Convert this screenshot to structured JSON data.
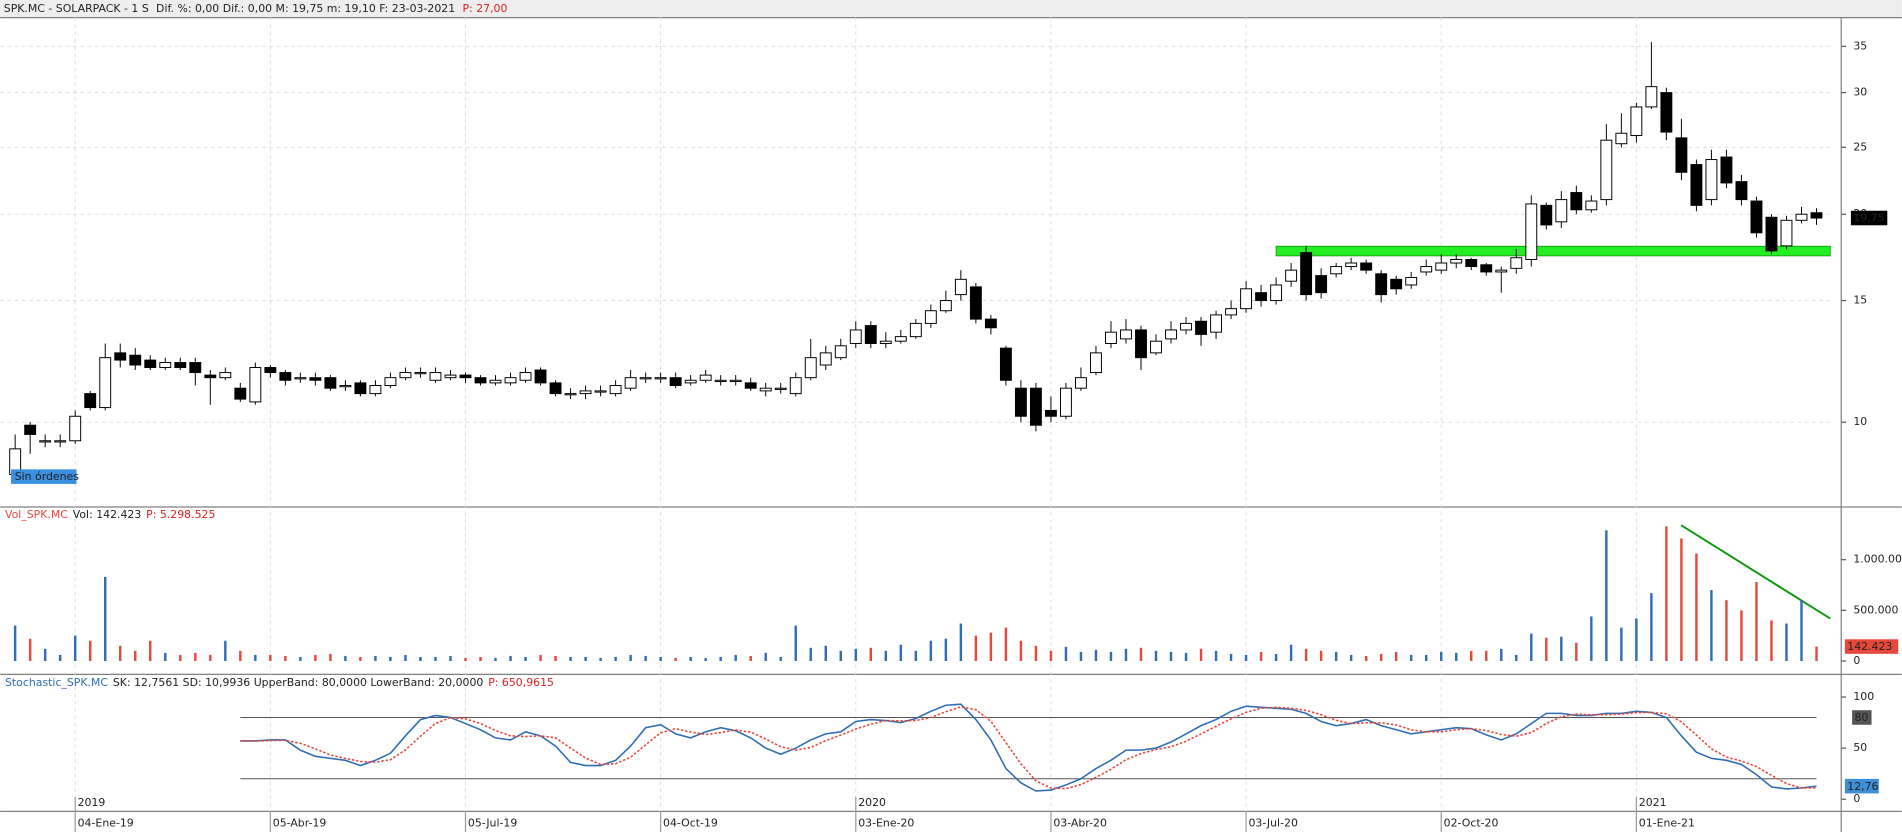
{
  "header": {
    "symbol": "SPK.MC - SOLARPACK -  1 S",
    "stats": "Dif. %: 0,00  Dif.: 0,00  M: 19,75  m: 19,10  F: 23-03-2021",
    "price": "P: 27,00"
  },
  "orders_label": "Sin órdenes",
  "chart_data": [
    {
      "type": "candlestick",
      "log_scale": true,
      "grid": true,
      "up_color": "#ffffff",
      "down_color": "#000000",
      "xlim": [
        -1,
        121
      ],
      "ylim": [
        7.6,
        38.6
      ],
      "yticks": [
        10,
        15,
        20,
        25,
        30,
        35
      ],
      "xticks": [
        {
          "value": 4,
          "label": "04-Ene-19"
        },
        {
          "value": 17,
          "label": "05-Abr-19"
        },
        {
          "value": 30,
          "label": "05-Jul-19"
        },
        {
          "value": 43,
          "label": "04-Oct-19"
        },
        {
          "value": 56,
          "label": "03-Ene-20"
        },
        {
          "value": 69,
          "label": "03-Abr-20"
        },
        {
          "value": 82,
          "label": "03-Jul-20"
        },
        {
          "value": 95,
          "label": "02-Oct-20"
        },
        {
          "value": 108,
          "label": "01-Ene-21"
        }
      ],
      "year_labels": [
        {
          "value": 4,
          "label": "2019"
        },
        {
          "value": 56,
          "label": "2020"
        },
        {
          "value": 108,
          "label": "2021"
        }
      ],
      "last_value_label": "19,75",
      "open": [
        8.4,
        9.9,
        9.4,
        9.4,
        9.4,
        11.0,
        10.5,
        12.6,
        12.5,
        12.3,
        12.0,
        12.2,
        12.2,
        11.7,
        11.6,
        11.2,
        10.7,
        12.0,
        11.8,
        11.6,
        11.6,
        11.6,
        11.3,
        11.4,
        11.0,
        11.3,
        11.6,
        11.8,
        11.5,
        11.6,
        11.7,
        11.6,
        11.4,
        11.4,
        11.5,
        11.9,
        11.4,
        11.0,
        11.0,
        11.1,
        11.0,
        11.2,
        11.6,
        11.6,
        11.6,
        11.4,
        11.5,
        11.5,
        11.5,
        11.4,
        11.1,
        11.2,
        11.0,
        11.6,
        12.1,
        12.4,
        13.0,
        13.8,
        13.0,
        13.1,
        13.3,
        13.9,
        14.5,
        15.3,
        15.7,
        14.1,
        12.8,
        11.2,
        11.2,
        10.4,
        10.2,
        11.2,
        11.8,
        13.0,
        13.2,
        13.6,
        12.6,
        13.2,
        13.6,
        14.0,
        13.5,
        14.3,
        14.6,
        15.4,
        15.0,
        16.0,
        17.6,
        16.3,
        16.4,
        16.8,
        17.0,
        16.4,
        16.1,
        15.8,
        16.5,
        16.6,
        17.0,
        17.2,
        16.9,
        16.5,
        16.7,
        17.2,
        20.6,
        19.5,
        21.5,
        20.3,
        21.0,
        25.3,
        26.0,
        28.6,
        30.0,
        25.8,
        23.6,
        21.0,
        24.2,
        22.3,
        20.9,
        19.8,
        18.0,
        19.6,
        20.1
      ],
      "high": [
        9.6,
        10.0,
        9.6,
        9.6,
        10.4,
        11.1,
        13.0,
        13.0,
        12.8,
        12.5,
        12.4,
        12.4,
        12.4,
        11.9,
        12.0,
        11.4,
        12.2,
        12.1,
        11.9,
        11.8,
        11.8,
        11.7,
        11.5,
        11.5,
        11.5,
        11.8,
        12.0,
        12.0,
        12.0,
        11.9,
        11.8,
        11.7,
        11.7,
        11.8,
        12.0,
        12.0,
        11.5,
        11.2,
        11.3,
        11.3,
        11.5,
        11.9,
        11.8,
        11.8,
        11.8,
        11.7,
        11.9,
        11.7,
        11.7,
        11.6,
        11.4,
        11.4,
        11.8,
        13.2,
        12.9,
        13.2,
        14.0,
        14.0,
        13.5,
        13.6,
        14.1,
        14.8,
        15.5,
        16.6,
        15.9,
        14.3,
        12.9,
        11.5,
        11.4,
        10.9,
        11.4,
        12.0,
        12.9,
        14.0,
        14.1,
        13.8,
        13.4,
        14.0,
        14.2,
        14.2,
        14.5,
        15.0,
        16.0,
        15.8,
        16.2,
        17.0,
        18.0,
        16.7,
        17.0,
        17.3,
        17.2,
        16.6,
        16.3,
        16.5,
        17.2,
        17.5,
        17.5,
        17.3,
        17.0,
        16.8,
        17.8,
        21.3,
        20.8,
        21.6,
        22.0,
        21.3,
        27.0,
        28.0,
        29.0,
        35.5,
        30.5,
        27.5,
        24.0,
        24.8,
        24.8,
        22.8,
        21.2,
        20.0,
        19.9,
        20.5,
        20.4
      ],
      "low": [
        8.2,
        9.0,
        9.2,
        9.2,
        9.3,
        10.4,
        10.4,
        12.0,
        11.9,
        11.9,
        11.9,
        11.9,
        11.3,
        10.6,
        11.5,
        10.7,
        10.6,
        11.6,
        11.3,
        11.4,
        11.3,
        11.1,
        11.1,
        10.9,
        10.9,
        11.2,
        11.5,
        11.6,
        11.4,
        11.5,
        11.4,
        11.3,
        11.3,
        11.3,
        11.4,
        11.3,
        10.9,
        10.8,
        10.8,
        10.9,
        10.9,
        11.1,
        11.4,
        11.4,
        11.2,
        11.3,
        11.4,
        11.3,
        11.3,
        11.1,
        10.9,
        11.0,
        10.9,
        11.5,
        11.9,
        12.3,
        12.8,
        12.8,
        12.8,
        13.0,
        13.2,
        13.7,
        14.4,
        15.0,
        13.9,
        13.4,
        11.3,
        10.0,
        9.7,
        10.0,
        10.1,
        11.1,
        11.7,
        12.8,
        13.0,
        11.9,
        12.5,
        13.0,
        13.4,
        12.9,
        13.2,
        14.1,
        14.4,
        14.7,
        14.8,
        15.7,
        15.0,
        15.1,
        16.2,
        16.6,
        16.4,
        14.9,
        15.3,
        15.6,
        16.3,
        16.4,
        16.7,
        16.6,
        16.3,
        15.4,
        16.4,
        16.8,
        19.0,
        19.1,
        20.0,
        20.1,
        20.6,
        25.0,
        25.4,
        28.4,
        25.6,
        22.4,
        20.2,
        20.6,
        21.8,
        20.6,
        18.5,
        17.5,
        17.8,
        19.4,
        19.3
      ],
      "close": [
        9.15,
        9.6,
        9.4,
        9.4,
        10.2,
        10.5,
        12.4,
        12.3,
        12.1,
        12.0,
        12.2,
        12.0,
        11.8,
        11.6,
        11.8,
        10.8,
        12.0,
        11.8,
        11.5,
        11.6,
        11.5,
        11.2,
        11.3,
        11.0,
        11.3,
        11.6,
        11.8,
        11.8,
        11.8,
        11.7,
        11.6,
        11.4,
        11.5,
        11.6,
        11.8,
        11.4,
        11.0,
        11.0,
        11.1,
        11.1,
        11.3,
        11.6,
        11.6,
        11.6,
        11.3,
        11.5,
        11.7,
        11.5,
        11.5,
        11.2,
        11.2,
        11.2,
        11.6,
        12.4,
        12.6,
        12.9,
        13.6,
        13.0,
        13.1,
        13.3,
        13.9,
        14.5,
        15.0,
        16.1,
        14.1,
        13.7,
        11.5,
        10.2,
        9.9,
        10.2,
        11.2,
        11.6,
        12.6,
        13.5,
        13.6,
        12.4,
        13.1,
        13.6,
        13.9,
        13.4,
        14.3,
        14.6,
        15.6,
        15.0,
        15.8,
        16.6,
        15.3,
        15.4,
        16.8,
        17.0,
        16.6,
        15.3,
        15.6,
        16.2,
        16.8,
        17.0,
        17.2,
        16.8,
        16.5,
        16.6,
        17.3,
        20.7,
        19.3,
        21.0,
        20.3,
        20.9,
        25.6,
        26.2,
        28.6,
        30.6,
        26.3,
        23.0,
        20.6,
        24.0,
        22.2,
        21.0,
        18.8,
        17.7,
        19.6,
        20.0,
        19.75
      ]
    },
    {
      "type": "bar",
      "name": "Vol_SPK.MC",
      "current": "Vol: 142.423",
      "total": "P: 5.298.525",
      "up_color": "#2f6db5",
      "down_color": "#e8483c",
      "ylim": [
        0,
        1353000
      ],
      "yticks": [
        0,
        {
          "value": 500000,
          "label": "500.000"
        },
        {
          "value": 1000000,
          "label": "1.000.000"
        }
      ],
      "last_value_label": "142.423",
      "values": [
        350000,
        220000,
        120000,
        60000,
        250000,
        200000,
        830000,
        150000,
        100000,
        200000,
        80000,
        60000,
        80000,
        60000,
        200000,
        100000,
        60000,
        60000,
        50000,
        40000,
        60000,
        70000,
        50000,
        40000,
        50000,
        40000,
        60000,
        40000,
        40000,
        50000,
        30000,
        40000,
        30000,
        50000,
        40000,
        60000,
        50000,
        40000,
        40000,
        30000,
        40000,
        60000,
        50000,
        40000,
        30000,
        40000,
        30000,
        40000,
        60000,
        50000,
        80000,
        40000,
        350000,
        130000,
        150000,
        100000,
        120000,
        130000,
        100000,
        160000,
        100000,
        200000,
        220000,
        370000,
        250000,
        280000,
        330000,
        200000,
        150000,
        100000,
        140000,
        90000,
        110000,
        90000,
        120000,
        130000,
        100000,
        90000,
        80000,
        120000,
        100000,
        70000,
        60000,
        90000,
        70000,
        160000,
        120000,
        100000,
        90000,
        60000,
        50000,
        70000,
        90000,
        60000,
        60000,
        90000,
        80000,
        100000,
        100000,
        120000,
        60000,
        270000,
        230000,
        240000,
        180000,
        440000,
        1290000,
        330000,
        420000,
        670000,
        1330000,
        1210000,
        1060000,
        700000,
        600000,
        500000,
        780000,
        400000,
        370000,
        600000,
        142423
      ]
    },
    {
      "type": "line",
      "name": "Stochastic_SPK.MC",
      "stats": "SK: 12,7561  SD: 10,9936  UpperBand: 80,0000  LowerBand: 20,0000",
      "total": "P: 650,9615",
      "ylim": [
        -6,
        108
      ],
      "yticks": [
        0,
        50,
        100
      ],
      "upper_band": 80,
      "lower_band": 20,
      "band_color": "#555555",
      "last_value_label": "12,76",
      "series": [
        {
          "color": "#2f6db5",
          "values": [
            null,
            null,
            null,
            null,
            null,
            null,
            null,
            null,
            null,
            null,
            null,
            null,
            null,
            null,
            null,
            57,
            57,
            58,
            58,
            48,
            42,
            40,
            38,
            33,
            38,
            45,
            62,
            78,
            82,
            80,
            74,
            68,
            60,
            58,
            66,
            62,
            52,
            36,
            33,
            33,
            38,
            52,
            70,
            73,
            64,
            60,
            66,
            70,
            67,
            60,
            50,
            44,
            50,
            58,
            64,
            66,
            76,
            78,
            77,
            75,
            79,
            86,
            92,
            93,
            78,
            58,
            30,
            16,
            8,
            9,
            14,
            20,
            30,
            38,
            48,
            48,
            50,
            56,
            64,
            72,
            78,
            86,
            91,
            90,
            89,
            88,
            84,
            76,
            72,
            74,
            78,
            72,
            68,
            64,
            66,
            68,
            70,
            69,
            63,
            58,
            64,
            74,
            84,
            84,
            82,
            82,
            84,
            84,
            86,
            85,
            80,
            62,
            46,
            40,
            38,
            34,
            24,
            12,
            10,
            11,
            12.76
          ]
        },
        {
          "color": "#e8483c",
          "dashed": true,
          "values": [
            null,
            null,
            null,
            null,
            null,
            null,
            null,
            null,
            null,
            null,
            null,
            null,
            null,
            null,
            null,
            57,
            57,
            57.3,
            57.7,
            54.7,
            49.3,
            43.3,
            40,
            37,
            36.3,
            38.7,
            48.3,
            61.7,
            74,
            80,
            78.7,
            74,
            67.3,
            62,
            61.3,
            62,
            60,
            50,
            40.3,
            34,
            34.7,
            41,
            53.3,
            65,
            69,
            65.7,
            63.3,
            65.3,
            67.7,
            65.7,
            59,
            51.3,
            48,
            50.7,
            57.3,
            62.7,
            68.7,
            73.3,
            77,
            76.7,
            77,
            80,
            85.7,
            90.3,
            87.7,
            76.3,
            55.3,
            34.7,
            18,
            11,
            10.3,
            14.3,
            21.3,
            29.3,
            38.7,
            44.7,
            48.7,
            51.3,
            56.7,
            64,
            71.3,
            78.7,
            85,
            89,
            90,
            89,
            87,
            82.7,
            77.3,
            74,
            74.7,
            74.7,
            72.7,
            68,
            66,
            66,
            68,
            69,
            67.3,
            63.3,
            61.7,
            65.3,
            74,
            80.7,
            83.3,
            82.7,
            82.7,
            83.3,
            84.7,
            85,
            83.7,
            75.7,
            62.7,
            49.3,
            41.3,
            37.3,
            32,
            23.3,
            15.3,
            11,
            10.99
          ]
        }
      ]
    }
  ]
}
